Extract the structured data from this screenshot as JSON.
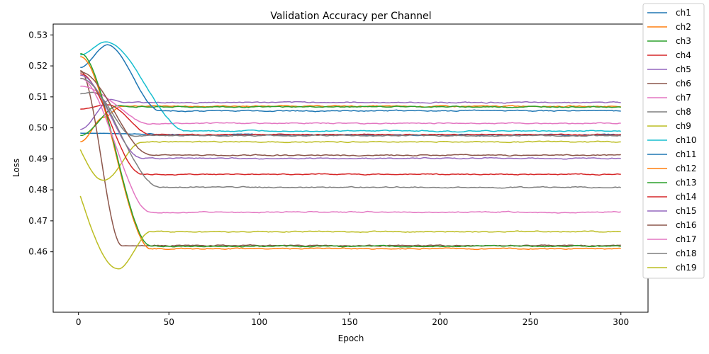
{
  "chart_data": {
    "type": "line",
    "title": "Validation Accuracy per Channel",
    "xlabel": "Epoch",
    "ylabel": "Loss",
    "xlim": [
      -14,
      315
    ],
    "ylim": [
      0.4405,
      0.5335
    ],
    "xticks": [
      0,
      50,
      100,
      150,
      200,
      250,
      300
    ],
    "yticks": [
      0.46,
      0.47,
      0.48,
      0.49,
      0.5,
      0.51,
      0.52,
      0.53
    ],
    "ytick_labels": [
      "0.46",
      "0.47",
      "0.48",
      "0.49",
      "0.50",
      "0.51",
      "0.52",
      "0.53"
    ],
    "grid": false,
    "legend_position": "right",
    "series": [
      {
        "name": "ch1",
        "color": "#1f77b4",
        "start": 0.4983,
        "peak": 0.4983,
        "peak_x": 1,
        "final": 0.4978,
        "drop_end": 60
      },
      {
        "name": "ch2",
        "color": "#ff7f0e",
        "start": 0.4955,
        "peak": 0.5035,
        "peak_x": 14,
        "final": 0.507,
        "drop_end": 24
      },
      {
        "name": "ch3",
        "color": "#2ca02c",
        "start": 0.4975,
        "peak": 0.5072,
        "peak_x": 22,
        "final": 0.5068,
        "drop_end": 30
      },
      {
        "name": "ch4",
        "color": "#d62728",
        "start": 0.506,
        "peak": 0.5075,
        "peak_x": 16,
        "final": 0.4978,
        "drop_end": 40
      },
      {
        "name": "ch5",
        "color": "#9467bd",
        "start": 0.4995,
        "peak": 0.5092,
        "peak_x": 18,
        "final": 0.5082,
        "drop_end": 25
      },
      {
        "name": "ch6",
        "color": "#8c564b",
        "start": 0.5185,
        "peak": 0.5185,
        "peak_x": 1,
        "final": 0.462,
        "drop_end": 24
      },
      {
        "name": "ch7",
        "color": "#e377c2",
        "start": 0.5135,
        "peak": 0.5135,
        "peak_x": 1,
        "final": 0.5015,
        "drop_end": 40
      },
      {
        "name": "ch8",
        "color": "#7f7f7f",
        "start": 0.511,
        "peak": 0.5115,
        "peak_x": 8,
        "final": 0.4975,
        "drop_end": 30
      },
      {
        "name": "ch9",
        "color": "#bcbd22",
        "start": 0.493,
        "dip": 0.483,
        "dip_x": 14,
        "final": 0.4955,
        "drop_end": 35
      },
      {
        "name": "ch10",
        "color": "#17becf",
        "start": 0.5235,
        "peak": 0.5278,
        "peak_x": 15,
        "final": 0.499,
        "drop_end": 60
      },
      {
        "name": "ch11",
        "color": "#1f77b4",
        "start": 0.5195,
        "peak": 0.5268,
        "peak_x": 16,
        "final": 0.5055,
        "drop_end": 45
      },
      {
        "name": "ch12",
        "color": "#ff7f0e",
        "start": 0.523,
        "peak": 0.523,
        "peak_x": 1,
        "final": 0.461,
        "drop_end": 40
      },
      {
        "name": "ch13",
        "color": "#2ca02c",
        "start": 0.524,
        "peak": 0.524,
        "peak_x": 1,
        "final": 0.4618,
        "drop_end": 40
      },
      {
        "name": "ch14",
        "color": "#d62728",
        "start": 0.5175,
        "peak": 0.5175,
        "peak_x": 1,
        "final": 0.485,
        "drop_end": 35
      },
      {
        "name": "ch15",
        "color": "#9467bd",
        "start": 0.517,
        "peak": 0.517,
        "peak_x": 1,
        "final": 0.4902,
        "drop_end": 35
      },
      {
        "name": "ch16",
        "color": "#8c564b",
        "start": 0.518,
        "peak": 0.518,
        "peak_x": 1,
        "final": 0.4912,
        "drop_end": 40
      },
      {
        "name": "ch17",
        "color": "#e377c2",
        "start": 0.516,
        "peak": 0.516,
        "peak_x": 1,
        "final": 0.4728,
        "drop_end": 40
      },
      {
        "name": "ch18",
        "color": "#7f7f7f",
        "start": 0.516,
        "peak": 0.516,
        "peak_x": 1,
        "final": 0.4808,
        "drop_end": 45
      },
      {
        "name": "ch19",
        "color": "#bcbd22",
        "start": 0.478,
        "dip": 0.4545,
        "dip_x": 22,
        "final": 0.4665,
        "drop_end": 40
      }
    ]
  }
}
